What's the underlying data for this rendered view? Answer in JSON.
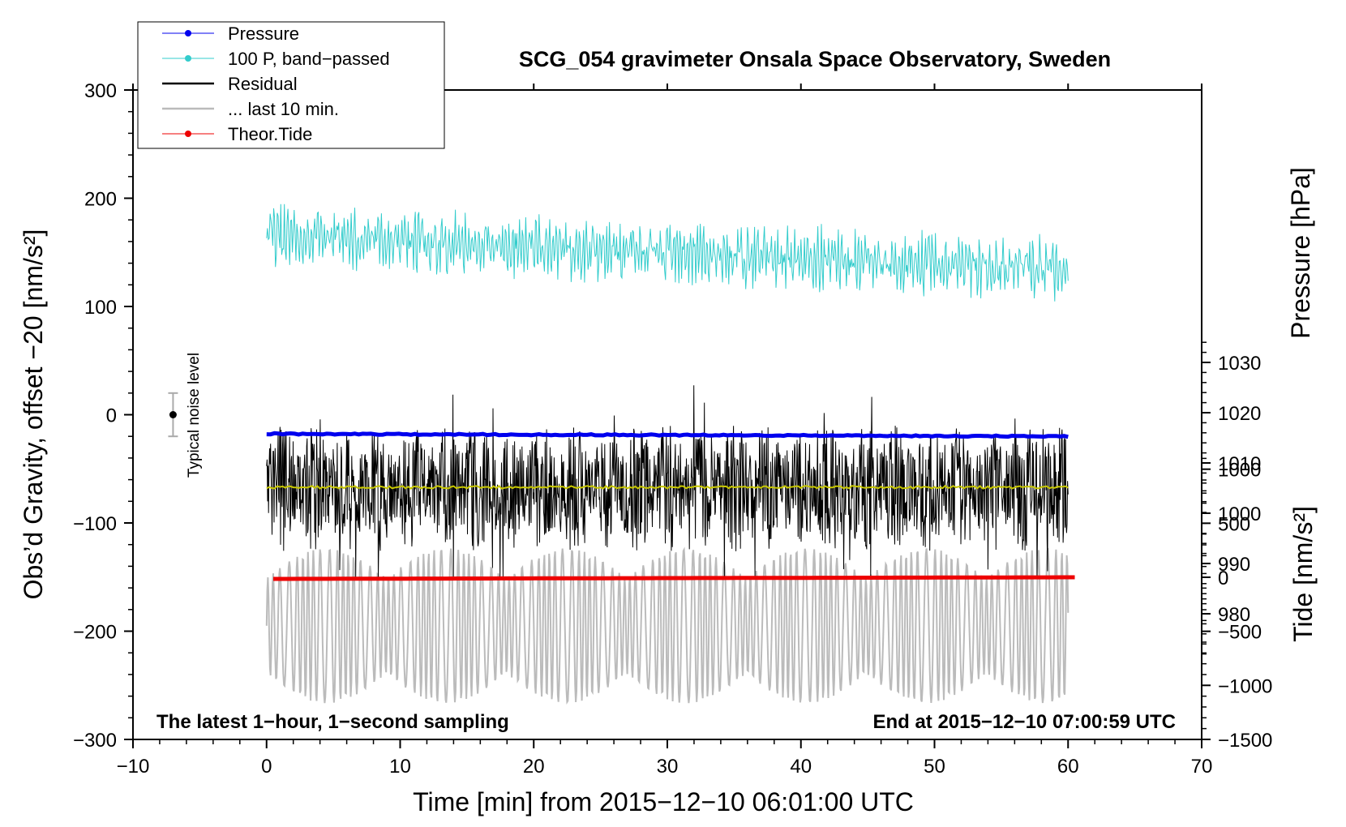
{
  "chart_data": {
    "type": "line",
    "title": "SCG_054 gravimeter Onsala Space Observatory, Sweden",
    "xlabel": "Time [min] from 2015−12−10 06:01:00 UTC",
    "ylabel_left": "Obs’d Gravity, offset −20 [nm/s²]",
    "ylabel_right_top": "Pressure [hPa]",
    "ylabel_right_bottom": "Tide [nm/s²]",
    "xlim": [
      -10,
      70
    ],
    "ylim_left": [
      -300,
      300
    ],
    "xticks": [
      -10,
      0,
      10,
      20,
      30,
      40,
      50,
      60,
      70
    ],
    "xtick_labels": [
      "−10",
      "0",
      "10",
      "20",
      "30",
      "40",
      "50",
      "60",
      "70"
    ],
    "yticks_left": [
      300,
      200,
      100,
      0,
      -100,
      -200,
      -300
    ],
    "ytick_labels_left": [
      "300",
      "200",
      "100",
      "0",
      "−100",
      "−200",
      "−300"
    ],
    "yticks_pressure": [
      1030,
      1020,
      1010,
      1000,
      990,
      980
    ],
    "ytick_labels_pressure": [
      "1030",
      "1020",
      "1010",
      "1000",
      "990",
      "980"
    ],
    "yticks_tide": [
      1000,
      500,
      0,
      -500,
      -1000,
      -1500
    ],
    "ytick_labels_tide": [
      "1000",
      "500",
      "0",
      "−500",
      "−1000",
      "−1500"
    ],
    "annotation_left": "The latest 1−hour, 1−second sampling",
    "annotation_right": "End at 2015−12−10 07:00:59 UTC",
    "noise_label": "Typical noise level",
    "noise_level": {
      "x": -7,
      "y": 0,
      "error": 20
    },
    "legend": {
      "position": "top-left",
      "entries": [
        {
          "label": "Pressure",
          "color": "#0000ee",
          "marker": "dot"
        },
        {
          "label": "100 P, band−passed",
          "color": "#33cccc",
          "marker": "dot"
        },
        {
          "label": "Residual",
          "color": "#000000",
          "marker": "none"
        },
        {
          "label": "... last 10 min.",
          "color": "#bbbbbb",
          "marker": "none"
        },
        {
          "label": "Theor.Tide",
          "color": "#ee0000",
          "marker": "dot"
        }
      ]
    },
    "series": [
      {
        "name": "Pressure",
        "color": "#0000ee",
        "axis": "pressure",
        "x_range": [
          0,
          60
        ],
        "start": 1015.8,
        "end": 1015.3
      },
      {
        "name": "100 P, band−passed",
        "color": "#33cccc",
        "axis": "gravity",
        "x_range": [
          0,
          60
        ],
        "mean_start": 165,
        "mean_end": 135,
        "amplitude": 25
      },
      {
        "name": "Residual",
        "color": "#000000",
        "axis": "gravity",
        "x_range": [
          0,
          60
        ],
        "mean": -68,
        "amplitude": 45
      },
      {
        "name": "smoothed residual",
        "color": "#cccc00",
        "axis": "gravity",
        "x_range": [
          0,
          60
        ],
        "mean": -67
      },
      {
        "name": "... last 10 min.",
        "color": "#bbbbbb",
        "axis": "gravity",
        "x_range": [
          0,
          60
        ],
        "mean": -195,
        "amplitude": 55
      },
      {
        "name": "Theor.Tide",
        "color": "#ee0000",
        "axis": "tide",
        "x_range": [
          0.5,
          60.5
        ],
        "start": -15,
        "end": 0
      }
    ]
  }
}
